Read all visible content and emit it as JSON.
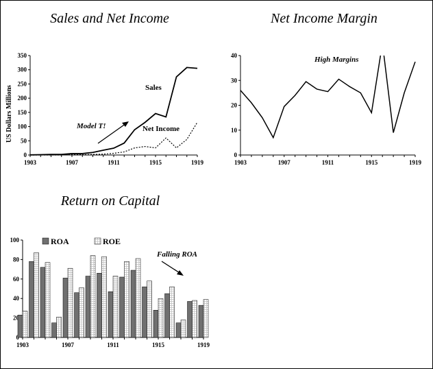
{
  "chart_data": [
    {
      "type": "line",
      "title": "Sales and Net Income",
      "xlabel": "",
      "ylabel": "US Dollars Millions",
      "x_range": [
        1903,
        1919
      ],
      "x_ticks": [
        "1903",
        "1907",
        "1911",
        "1915",
        "1919"
      ],
      "ylim": [
        0,
        350
      ],
      "y_ticks": [
        "0",
        "50",
        "100",
        "150",
        "200",
        "250",
        "300",
        "350"
      ],
      "series": [
        {
          "name": "Sales",
          "style": "solid",
          "x": [
            1903,
            1904,
            1905,
            1906,
            1907,
            1908,
            1909,
            1910,
            1911,
            1912,
            1913,
            1914,
            1915,
            1916,
            1917,
            1918,
            1919
          ],
          "values": [
            0.5,
            1,
            2,
            2,
            5,
            5,
            9,
            17,
            24,
            42,
            89,
            115,
            146,
            134,
            275,
            308,
            305
          ]
        },
        {
          "name": "Net Income",
          "style": "dotted",
          "x": [
            1903,
            1904,
            1905,
            1906,
            1907,
            1908,
            1909,
            1910,
            1911,
            1912,
            1913,
            1914,
            1915,
            1916,
            1917,
            1918,
            1919
          ],
          "values": [
            0,
            0,
            0,
            0,
            1,
            1,
            2,
            3,
            6,
            11,
            25,
            30,
            25,
            60,
            25,
            55,
            115
          ]
        }
      ],
      "annotations": [
        "Sales",
        "Net Income",
        "Model T!"
      ]
    },
    {
      "type": "line",
      "title": "Net Income Margin",
      "xlabel": "",
      "ylabel": "",
      "x_range": [
        1903,
        1919
      ],
      "x_ticks": [
        "1903",
        "1907",
        "1911",
        "1915",
        "1919"
      ],
      "ylim": [
        0,
        40
      ],
      "y_ticks": [
        "0",
        "10",
        "20",
        "30",
        "40"
      ],
      "series": [
        {
          "x": [
            1903,
            1904,
            1905,
            1906,
            1907,
            1908,
            1909,
            1910,
            1911,
            1912,
            1913,
            1914,
            1915,
            1916,
            1917,
            1918,
            1919
          ],
          "values": [
            26,
            21,
            15,
            7,
            19.5,
            24,
            29.5,
            26.5,
            25.5,
            30.5,
            27.5,
            25,
            17,
            45,
            9,
            25,
            37.5
          ]
        }
      ],
      "annotations": [
        "High Margins"
      ]
    },
    {
      "type": "bar",
      "title": "Return on Capital",
      "xlabel": "",
      "ylabel": "",
      "categories": [
        1903,
        1904,
        1905,
        1906,
        1907,
        1908,
        1909,
        1910,
        1911,
        1912,
        1913,
        1914,
        1915,
        1916,
        1917,
        1918,
        1919
      ],
      "x_ticks": [
        "1903",
        "1907",
        "1911",
        "1915",
        "1919"
      ],
      "ylim": [
        0,
        100
      ],
      "y_ticks": [
        "0",
        "20",
        "40",
        "60",
        "80",
        "100"
      ],
      "series": [
        {
          "name": "ROA",
          "values": [
            23,
            78,
            72,
            15,
            61,
            46,
            63,
            66,
            47,
            62,
            69,
            52,
            28,
            45,
            15,
            37,
            33
          ]
        },
        {
          "name": "ROE",
          "values": [
            27,
            87,
            77,
            21,
            71,
            51,
            84,
            83,
            63,
            78,
            81,
            58,
            40,
            52,
            18,
            38,
            39
          ]
        }
      ],
      "legend": "top-left",
      "annotations": [
        "Falling ROA"
      ]
    }
  ],
  "colors": {
    "roa_fill": "#707070",
    "roe_fill": "#ffffff",
    "line": "#000000"
  }
}
